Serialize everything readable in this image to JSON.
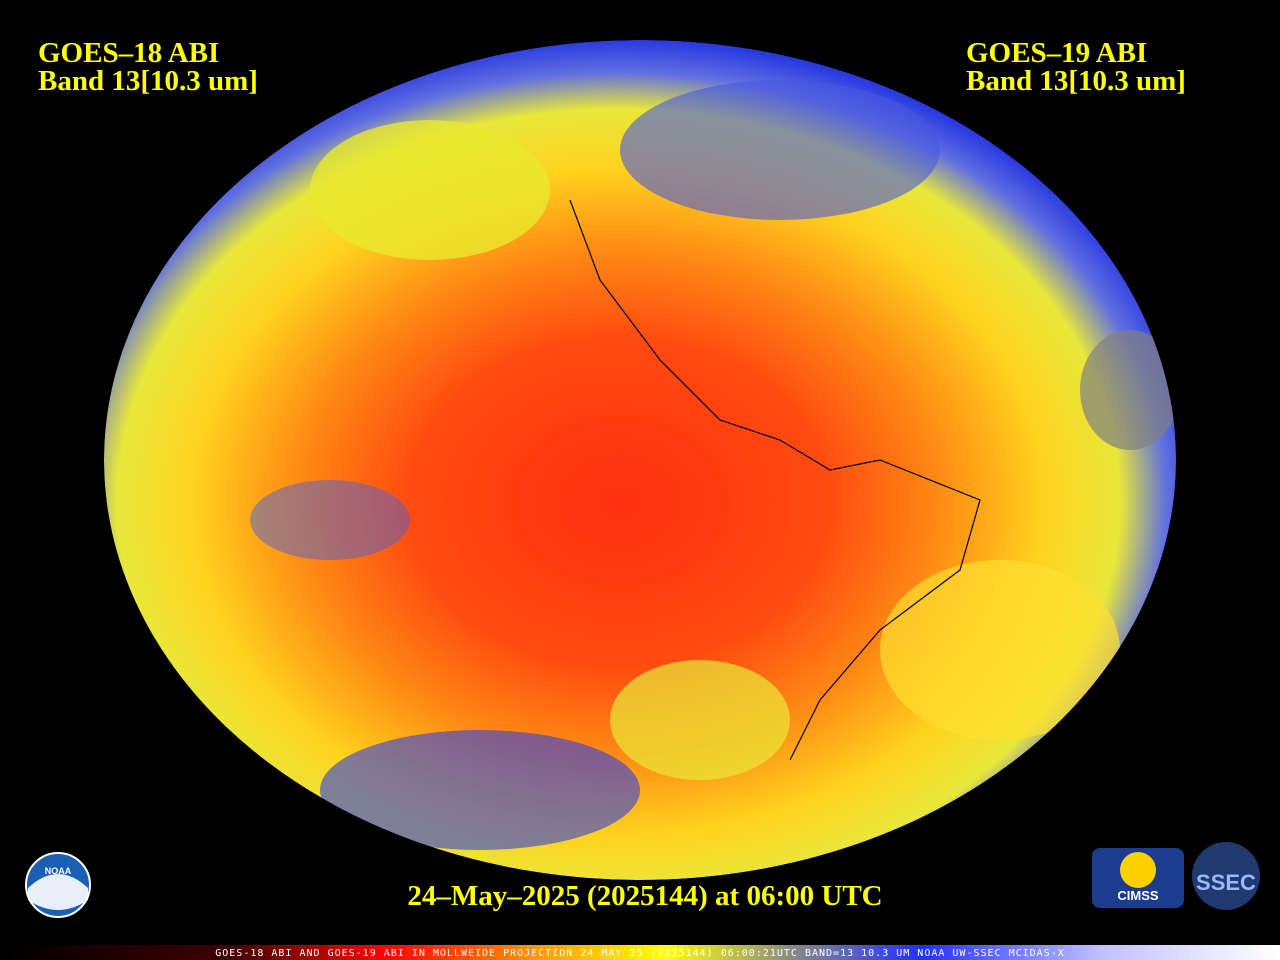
{
  "left_label": {
    "line1": "GOES–18 ABI",
    "line2": "Band 13[10.3 um]"
  },
  "right_label": {
    "line1": "GOES–19 ABI",
    "line2": "Band 13[10.3 um]"
  },
  "timestamp": "24–May–2025 (2025144) at 06:00 UTC",
  "footer": "GOES-18 ABI AND GOES-19 ABI IN MOLLWEIDE PROJECTION 24 MAY 25 (2025144) 06:00:21UTC BAND=13 10.3 UM NOAA UW-SSEC MCIDAS-X",
  "logos": {
    "noaa": "NOAA",
    "cimss": "CIMSS",
    "ssec": "SSEC"
  }
}
